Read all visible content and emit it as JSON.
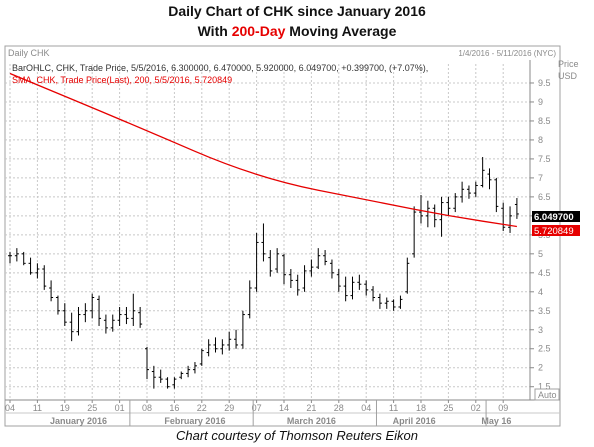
{
  "header": {
    "title_line1": "Daily Chart of CHK since January 2016",
    "title_line2_pre": "With ",
    "title_line2_highlight": "200-Day",
    "title_line2_post": " Moving Average"
  },
  "panel": {
    "name": "Daily CHK",
    "date_range": "1/4/2016 - 5/11/2016 (NYC)",
    "axis_unit_line1": "Price",
    "axis_unit_line2": "USD",
    "legend_ohlc": "BarOHLC, CHK, Trade Price, 5/5/2016, 6.300000, 6.470000, 5.920000, 6.049700, +0.399700, (+7.07%),",
    "legend_sma": "SMA, CHK, Trade Price(Last),  200,  5/5/2016, 5.720849",
    "last_price_label": "6.049700",
    "sma_price_label": "5.720849",
    "auto_label": "Auto"
  },
  "caption": "Chart courtesy of Thomson Reuters Eikon",
  "colors": {
    "background": "#ffffff",
    "grid": "#c8c8c8",
    "bars": "#000000",
    "sma": "#e60000",
    "accent_text": "#e60000",
    "last_price_bg": "#000000",
    "sma_label_bg": "#e60000"
  },
  "chart_data": {
    "type": "line",
    "ylim": [
      1.15,
      10.0
    ],
    "y_ticks": [
      1.5,
      2,
      2.5,
      3,
      3.5,
      4,
      4.5,
      5,
      5.5,
      6,
      6.5,
      7,
      7.5,
      8,
      8.5,
      9,
      9.5
    ],
    "x_ticks": [
      "04",
      "11",
      "19",
      "25",
      "01",
      "08",
      "16",
      "22",
      "29",
      "07",
      "14",
      "21",
      "28",
      "04",
      "11",
      "18",
      "25",
      "02",
      "09"
    ],
    "x_tick_index": [
      0,
      4,
      8,
      12,
      16,
      20,
      24,
      28,
      32,
      36,
      40,
      44,
      48,
      52,
      56,
      60,
      64,
      68,
      72
    ],
    "months": [
      {
        "label": "January 2016",
        "center_index": 10
      },
      {
        "label": "February 2016",
        "center_index": 27
      },
      {
        "label": "March 2016",
        "center_index": 44
      },
      {
        "label": "April 2016",
        "center_index": 59
      },
      {
        "label": "May 16",
        "center_index": 71
      }
    ],
    "month_separators": [
      17.5,
      35.5,
      53.5,
      69.5
    ],
    "ohlc": [
      [
        4.95,
        5.05,
        4.75,
        4.95
      ],
      [
        4.95,
        5.15,
        4.8,
        5.0
      ],
      [
        5.0,
        5.05,
        4.7,
        4.75
      ],
      [
        4.75,
        4.9,
        4.45,
        4.5
      ],
      [
        4.5,
        4.75,
        4.35,
        4.6
      ],
      [
        4.6,
        4.7,
        4.05,
        4.15
      ],
      [
        4.1,
        4.3,
        3.75,
        3.85
      ],
      [
        3.85,
        3.9,
        3.4,
        3.5
      ],
      [
        3.5,
        3.7,
        3.1,
        3.2
      ],
      [
        3.2,
        3.45,
        2.7,
        2.95
      ],
      [
        2.95,
        3.6,
        2.85,
        3.4
      ],
      [
        3.4,
        3.7,
        3.2,
        3.5
      ],
      [
        3.5,
        3.95,
        3.3,
        3.85
      ],
      [
        3.8,
        3.9,
        3.1,
        3.3
      ],
      [
        3.25,
        3.4,
        2.9,
        3.05
      ],
      [
        3.05,
        3.4,
        2.95,
        3.25
      ],
      [
        3.25,
        3.6,
        3.1,
        3.4
      ],
      [
        3.4,
        3.6,
        3.15,
        3.3
      ],
      [
        3.3,
        3.95,
        3.1,
        3.5
      ],
      [
        3.45,
        3.6,
        3.05,
        3.15
      ],
      [
        2.5,
        2.55,
        1.7,
        1.95
      ],
      [
        1.9,
        2.05,
        1.45,
        1.75
      ],
      [
        1.75,
        1.95,
        1.6,
        1.7
      ],
      [
        1.7,
        1.75,
        1.45,
        1.5
      ],
      [
        1.55,
        1.75,
        1.45,
        1.7
      ],
      [
        1.75,
        1.9,
        1.7,
        1.85
      ],
      [
        1.85,
        2.05,
        1.75,
        1.95
      ],
      [
        1.95,
        2.15,
        1.85,
        2.05
      ],
      [
        2.1,
        2.5,
        2.05,
        2.45
      ],
      [
        2.4,
        2.75,
        2.3,
        2.6
      ],
      [
        2.6,
        2.8,
        2.4,
        2.5
      ],
      [
        2.5,
        2.75,
        2.35,
        2.6
      ],
      [
        2.6,
        2.95,
        2.45,
        2.75
      ],
      [
        2.75,
        3.0,
        2.5,
        2.6
      ],
      [
        2.6,
        3.5,
        2.5,
        3.4
      ],
      [
        3.4,
        4.3,
        3.3,
        4.1
      ],
      [
        4.1,
        5.55,
        4.0,
        5.3
      ],
      [
        5.3,
        5.8,
        4.8,
        5.0
      ],
      [
        4.9,
        5.1,
        4.4,
        4.55
      ],
      [
        4.6,
        5.15,
        4.5,
        5.0
      ],
      [
        4.95,
        5.0,
        4.2,
        4.45
      ],
      [
        4.45,
        4.6,
        4.1,
        4.3
      ],
      [
        4.3,
        4.45,
        3.9,
        4.05
      ],
      [
        4.1,
        4.7,
        4.0,
        4.55
      ],
      [
        4.55,
        4.85,
        4.4,
        4.65
      ],
      [
        4.65,
        5.15,
        4.6,
        4.95
      ],
      [
        4.95,
        5.1,
        4.7,
        4.8
      ],
      [
        4.75,
        4.85,
        4.35,
        4.5
      ],
      [
        4.45,
        4.6,
        4.0,
        4.15
      ],
      [
        4.15,
        4.4,
        3.75,
        3.9
      ],
      [
        3.9,
        4.4,
        3.8,
        4.25
      ],
      [
        4.25,
        4.45,
        4.05,
        4.2
      ],
      [
        4.2,
        4.3,
        3.9,
        4.05
      ],
      [
        4.05,
        4.15,
        3.75,
        3.85
      ],
      [
        3.85,
        3.95,
        3.55,
        3.7
      ],
      [
        3.7,
        3.85,
        3.55,
        3.75
      ],
      [
        3.75,
        3.8,
        3.5,
        3.6
      ],
      [
        3.6,
        3.9,
        3.55,
        3.8
      ],
      [
        4.0,
        4.9,
        3.95,
        4.75
      ],
      [
        5.0,
        6.25,
        4.9,
        6.1
      ],
      [
        6.1,
        6.55,
        5.8,
        6.0
      ],
      [
        6.0,
        6.4,
        5.7,
        6.2
      ],
      [
        6.2,
        6.3,
        5.7,
        5.9
      ],
      [
        5.9,
        6.5,
        5.45,
        6.35
      ],
      [
        6.35,
        6.5,
        6.0,
        6.2
      ],
      [
        6.2,
        6.6,
        6.1,
        6.5
      ],
      [
        6.5,
        6.9,
        6.35,
        6.7
      ],
      [
        6.7,
        6.8,
        6.45,
        6.6
      ],
      [
        6.6,
        6.9,
        6.5,
        6.8
      ],
      [
        6.8,
        7.55,
        6.75,
        7.2
      ],
      [
        7.1,
        7.25,
        6.7,
        6.95
      ],
      [
        6.95,
        7.0,
        6.1,
        6.25
      ],
      [
        6.2,
        6.35,
        5.6,
        5.7
      ],
      [
        5.7,
        6.25,
        5.55,
        6.0
      ],
      [
        6.3,
        6.47,
        5.92,
        6.05
      ]
    ],
    "sma": [
      [
        0,
        9.75
      ],
      [
        18,
        8.4
      ],
      [
        36,
        7.0
      ],
      [
        54,
        6.35
      ],
      [
        64,
        6.0
      ],
      [
        74,
        5.72
      ]
    ]
  }
}
